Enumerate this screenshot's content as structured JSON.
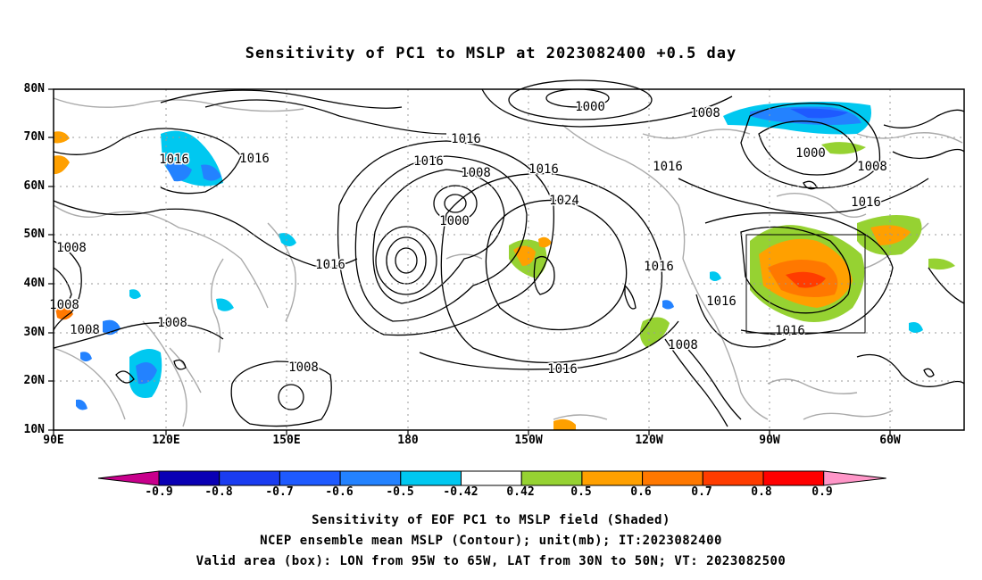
{
  "title": "Sensitivity of PC1 to MSLP at 2023082400 +0.5 day",
  "lat_labels": [
    "80N",
    "70N",
    "60N",
    "50N",
    "40N",
    "30N",
    "20N",
    "10N"
  ],
  "lon_labels": [
    "90E",
    "120E",
    "150E",
    "180",
    "150W",
    "120W",
    "90W",
    "60W"
  ],
  "colorbar": {
    "labels": [
      "-0.9",
      "-0.8",
      "-0.7",
      "-0.6",
      "-0.5",
      "-0.42",
      "0.42",
      "0.5",
      "0.6",
      "0.7",
      "0.8",
      "0.9"
    ],
    "colors": [
      "#c8008c",
      "#0a00b4",
      "#1a3cf0",
      "#1e5aff",
      "#2382ff",
      "#00c8f0",
      "#ffffff",
      "#96d232",
      "#ffa000",
      "#ff7800",
      "#ff3c00",
      "#ff0000",
      "#ff96c8"
    ]
  },
  "contour_labels": [
    "1000",
    "1008",
    "1016",
    "1024"
  ],
  "valid_area": {
    "lon": "95W to 65W",
    "lat": "30N to 50N"
  },
  "captions": {
    "line1": "Sensitivity of EOF PC1 to MSLP field (Shaded)",
    "line2": "NCEP ensemble mean MSLP (Contour); unit(mb); IT:2023082400",
    "line3": "Valid area (box): LON from 95W to 65W, LAT from 30N to 50N; VT: 2023082500"
  }
}
